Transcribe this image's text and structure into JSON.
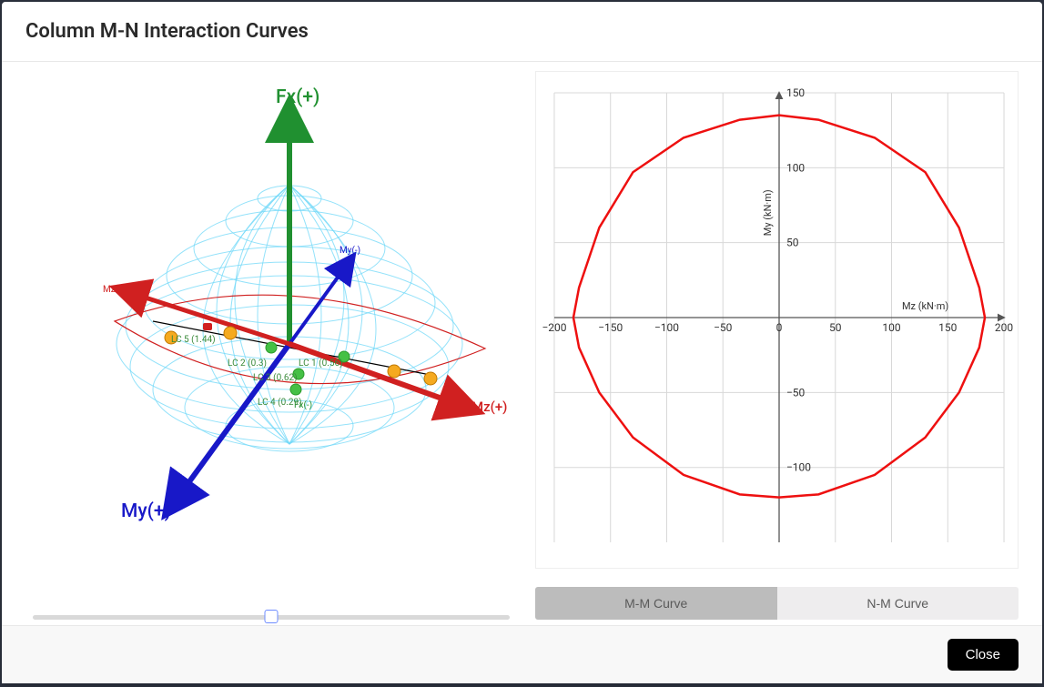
{
  "dialog": {
    "title": "Column M-N Interaction Curves",
    "close_label": "Close"
  },
  "axes3d": {
    "fx_pos": "Fx(+)",
    "fx_neg": "Fx(-)",
    "my_pos": "My(+)",
    "my_neg": "My(-)",
    "mz_pos": "Mz(+)",
    "mz_neg": "Mz(-)",
    "colors": {
      "fx": "#209030",
      "my": "#1818c8",
      "mz": "#d02020"
    }
  },
  "load_cases": {
    "labels": [
      "LC 1 (0.56)",
      "LC 2 (0.3)",
      "LC 3 (0.62)",
      "LC 4 (0.29)",
      "LC 5 (1.44)"
    ]
  },
  "chart2d": {
    "x_label": "Mz (kN·m)",
    "y_label": "My (kN·m)",
    "xlim": [
      -200,
      200
    ],
    "ylim": [
      -150,
      150
    ],
    "xticks": [
      -200,
      -150,
      -100,
      -50,
      0,
      50,
      100,
      150,
      200
    ],
    "yticks": [
      -100,
      -50,
      50,
      100,
      150
    ],
    "curve": [
      [
        0,
        135
      ],
      [
        35,
        132
      ],
      [
        85,
        120
      ],
      [
        130,
        97
      ],
      [
        160,
        60
      ],
      [
        178,
        20
      ],
      [
        183,
        0
      ],
      [
        178,
        -20
      ],
      [
        160,
        -50
      ],
      [
        130,
        -80
      ],
      [
        85,
        -105
      ],
      [
        35,
        -118
      ],
      [
        0,
        -120
      ],
      [
        -35,
        -118
      ],
      [
        -85,
        -105
      ],
      [
        -130,
        -80
      ],
      [
        -160,
        -50
      ],
      [
        -178,
        -20
      ],
      [
        -183,
        0
      ],
      [
        -178,
        20
      ],
      [
        -160,
        60
      ],
      [
        -130,
        97
      ],
      [
        -85,
        120
      ],
      [
        -35,
        132
      ],
      [
        0,
        135
      ]
    ],
    "curve_color": "#ee1010",
    "grid_color": "#d8d8d8",
    "background": "#ffffff"
  },
  "tabs": {
    "mm": "M-M Curve",
    "nm": "N-M Curve",
    "active": "mm"
  },
  "slider": {
    "value": 0.5
  }
}
